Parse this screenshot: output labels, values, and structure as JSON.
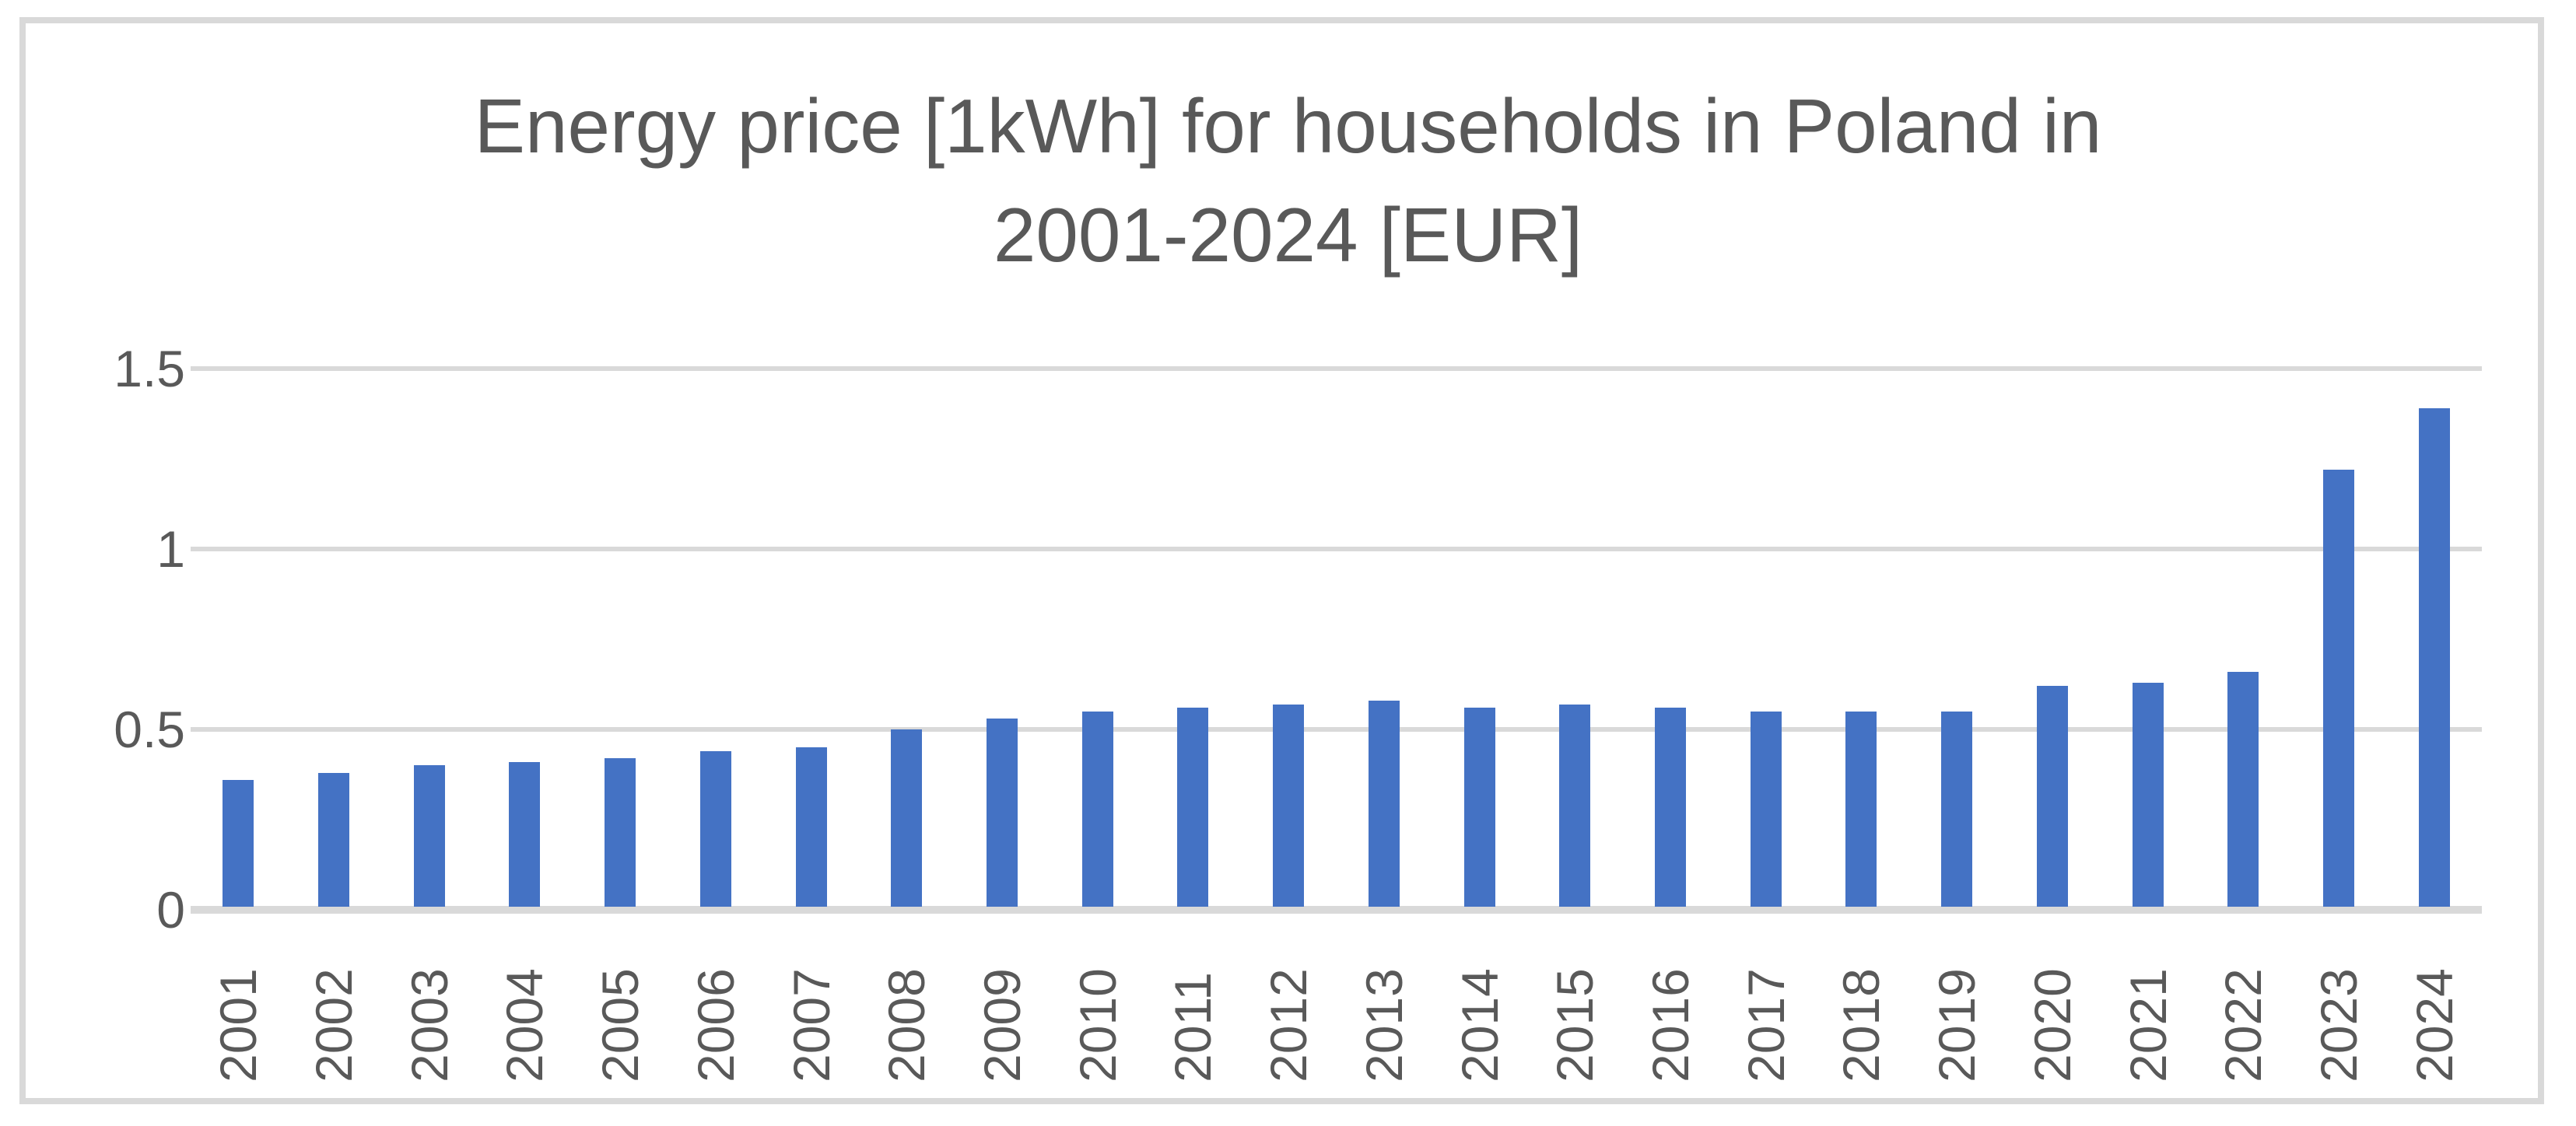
{
  "chart": {
    "title_line1": "Energy price [1kWh] for households in Poland in",
    "title_line2": "2001-2024 [EUR]",
    "colors": {
      "bar": "#4472C4",
      "gridline": "#D9D9D9",
      "axis_line": "#D9D9D9",
      "text": "#595959",
      "frame_border": "#D9D9D9",
      "background": "#FFFFFF"
    },
    "y_axis_tick_labels": [
      "0",
      "0.5",
      "1",
      "1.5"
    ],
    "x_axis_tick_labels": [
      "2001",
      "2002",
      "2003",
      "2004",
      "2005",
      "2006",
      "2007",
      "2008",
      "2009",
      "2010",
      "2011",
      "2012",
      "2013",
      "2014",
      "2015",
      "2016",
      "2017",
      "2018",
      "2019",
      "2020",
      "2021",
      "2022",
      "2023",
      "2024"
    ]
  },
  "chart_data": {
    "type": "bar",
    "title": "Energy price [1kWh] for households in Poland in 2001-2024 [EUR]",
    "categories": [
      "2001",
      "2002",
      "2003",
      "2004",
      "2005",
      "2006",
      "2007",
      "2008",
      "2009",
      "2010",
      "2011",
      "2012",
      "2013",
      "2014",
      "2015",
      "2016",
      "2017",
      "2018",
      "2019",
      "2020",
      "2021",
      "2022",
      "2023",
      "2024"
    ],
    "values": [
      0.36,
      0.38,
      0.4,
      0.41,
      0.42,
      0.44,
      0.45,
      0.5,
      0.53,
      0.55,
      0.56,
      0.57,
      0.58,
      0.56,
      0.57,
      0.56,
      0.55,
      0.55,
      0.55,
      0.62,
      0.63,
      0.66,
      1.22,
      1.39
    ],
    "xlabel": "",
    "ylabel": "",
    "ylim": [
      0,
      1.5
    ],
    "yticks": [
      0,
      0.5,
      1,
      1.5
    ],
    "grid": true,
    "legend": false,
    "bar_color": "#4472C4",
    "x_tick_rotation_degrees": -90
  }
}
